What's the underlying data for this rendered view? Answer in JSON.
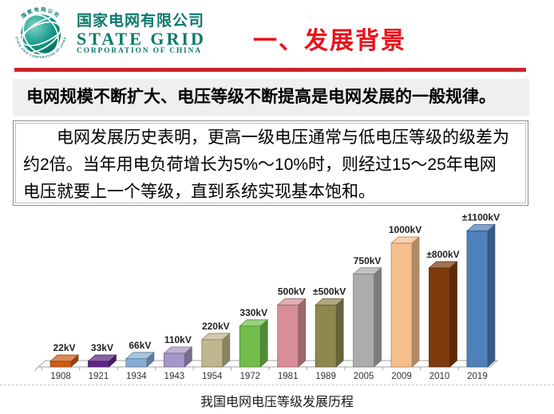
{
  "header": {
    "logo": {
      "company_cn": "国家电网有限公司",
      "company_en": "STATE GRID",
      "company_en_sub": "CORPORATION OF CHINA",
      "ring_text_top": "国家电网公司",
      "ring_text_bottom": "STATE GRID CORPORATION OF CHINA",
      "brand_color": "#0b7a6d"
    },
    "title": "一、发展背景",
    "title_color": "#e8131c",
    "rule_color": "#c9242b"
  },
  "lead": {
    "text": "电网规模不断扩大、电压等级不断提高是电网发展的一般规律。"
  },
  "paragraph": {
    "lines": [
      "电网发展历史表明，更高一级电压通常与低电压等级的级差为",
      "约2倍。当年用电负荷增长为5%～10%时，则经过15～25年电网",
      "电压就要上一个等级，直到系统实现基本饱和。"
    ]
  },
  "chart_data": {
    "type": "bar",
    "style": "3d-cuboid",
    "title": "我国电网电压等级发展历程",
    "xlabel": "",
    "ylabel": "",
    "unit": "kV",
    "ylim": [
      0,
      1100
    ],
    "grid": false,
    "legend": false,
    "categories": [
      "1908",
      "1921",
      "1934",
      "1943",
      "1954",
      "1972",
      "1981",
      "1989",
      "2005",
      "2009",
      "2010",
      "2019"
    ],
    "values": [
      22,
      33,
      66,
      110,
      220,
      330,
      500,
      500,
      750,
      1000,
      800,
      1100
    ],
    "value_labels": [
      "22kV",
      "33kV",
      "66kV",
      "110kV",
      "220kV",
      "330kV",
      "500kV",
      "±500kV",
      "750kV",
      "1000kV",
      "±800kV",
      "±1100kV"
    ],
    "bar_colors": [
      "#ce5c17",
      "#5f2585",
      "#84aed6",
      "#a796c8",
      "#c0b68e",
      "#72be4c",
      "#d88e97",
      "#8d8850",
      "#acacac",
      "#f6be8c",
      "#7e3a0d",
      "#4e80bc"
    ],
    "axis_color": "#a6a6a6",
    "label_color": "#1f1f1f",
    "tick_label_color": "#333333"
  }
}
